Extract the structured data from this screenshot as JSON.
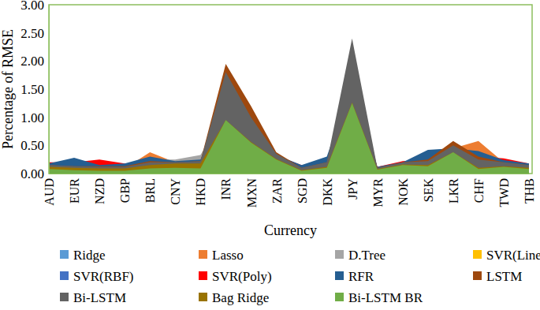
{
  "chart_data": {
    "type": "area",
    "x_label": "Currency",
    "y_label": "Percentage of RMSE",
    "categories": [
      "AUD",
      "EUR",
      "NZD",
      "GBP",
      "BRL",
      "CNY",
      "HKD",
      "INR",
      "MXN",
      "ZAR",
      "SGD",
      "DKK",
      "JPY",
      "MYR",
      "NOK",
      "SEK",
      "LKR",
      "CHF",
      "TWD",
      "THB"
    ],
    "ylim": [
      0,
      3
    ],
    "yticks": [
      {
        "value": 0,
        "label": "0.00"
      },
      {
        "value": 0.5,
        "label": "0.50"
      },
      {
        "value": 1,
        "label": "1.00"
      },
      {
        "value": 1.5,
        "label": "1.50"
      },
      {
        "value": 2,
        "label": "2.00"
      },
      {
        "value": 2.5,
        "label": "2.50"
      },
      {
        "value": 3,
        "label": "3.00"
      }
    ],
    "legend": "bottom",
    "series": [
      {
        "name": "Ridge",
        "color": "#5b9bd5",
        "values": [
          0.1,
          0.08,
          0.08,
          0.07,
          0.12,
          0.12,
          0.12,
          1.0,
          0.6,
          0.28,
          0.06,
          0.12,
          1.3,
          0.08,
          0.16,
          0.15,
          0.4,
          0.1,
          0.14,
          0.1
        ]
      },
      {
        "name": "Lasso",
        "color": "#ed7d31",
        "values": [
          0.12,
          0.1,
          0.1,
          0.09,
          0.38,
          0.2,
          0.15,
          1.05,
          0.65,
          0.3,
          0.08,
          0.15,
          1.35,
          0.1,
          0.2,
          0.2,
          0.45,
          0.58,
          0.2,
          0.14
        ]
      },
      {
        "name": "D.Tree",
        "color": "#a5a5a5",
        "values": [
          0.15,
          0.15,
          0.14,
          0.15,
          0.25,
          0.25,
          0.33,
          1.1,
          0.7,
          0.3,
          0.1,
          0.2,
          1.4,
          0.1,
          0.2,
          0.25,
          0.45,
          0.3,
          0.2,
          0.15
        ]
      },
      {
        "name": "SVR(Linear)",
        "color": "#ffc000",
        "values": [
          0.1,
          0.08,
          0.08,
          0.07,
          0.12,
          0.13,
          0.12,
          1.0,
          0.6,
          0.28,
          0.06,
          0.12,
          1.3,
          0.08,
          0.16,
          0.15,
          0.4,
          0.1,
          0.14,
          0.1
        ]
      },
      {
        "name": "SVR(RBF)",
        "color": "#4472c4",
        "values": [
          0.12,
          0.1,
          0.1,
          0.1,
          0.15,
          0.15,
          0.15,
          1.1,
          0.7,
          0.3,
          0.08,
          0.15,
          1.4,
          0.1,
          0.18,
          0.2,
          0.42,
          0.15,
          0.16,
          0.12
        ]
      },
      {
        "name": "SVR(Poly)",
        "color": "#ff0000",
        "values": [
          0.2,
          0.2,
          0.25,
          0.18,
          0.2,
          0.2,
          0.2,
          1.2,
          0.8,
          0.32,
          0.15,
          0.2,
          1.5,
          0.12,
          0.22,
          0.25,
          0.45,
          0.3,
          0.27,
          0.18
        ]
      },
      {
        "name": "RFR",
        "color": "#255e91",
        "values": [
          0.18,
          0.28,
          0.15,
          0.18,
          0.3,
          0.22,
          0.25,
          1.3,
          0.85,
          0.33,
          0.15,
          0.3,
          1.6,
          0.12,
          0.2,
          0.42,
          0.45,
          0.4,
          0.24,
          0.18
        ]
      },
      {
        "name": "LSTM",
        "color": "#9e480e",
        "values": [
          0.15,
          0.13,
          0.13,
          0.13,
          0.22,
          0.2,
          0.22,
          1.95,
          1.2,
          0.38,
          0.1,
          0.2,
          2.0,
          0.1,
          0.2,
          0.25,
          0.58,
          0.3,
          0.2,
          0.15
        ]
      },
      {
        "name": "Bi-LSTM",
        "color": "#636363",
        "values": [
          0.15,
          0.13,
          0.12,
          0.12,
          0.2,
          0.2,
          0.22,
          1.8,
          1.0,
          0.35,
          0.1,
          0.2,
          2.4,
          0.1,
          0.2,
          0.22,
          0.5,
          0.25,
          0.2,
          0.15
        ]
      },
      {
        "name": "Bag Ridge",
        "color": "#997300",
        "values": [
          0.12,
          0.1,
          0.09,
          0.09,
          0.15,
          0.18,
          0.18,
          0.95,
          0.56,
          0.26,
          0.06,
          0.12,
          1.26,
          0.08,
          0.16,
          0.15,
          0.38,
          0.1,
          0.13,
          0.1
        ]
      },
      {
        "name": "Bi-LSTM BR",
        "color": "#70ad47",
        "values": [
          0.08,
          0.06,
          0.05,
          0.05,
          0.09,
          0.1,
          0.09,
          0.95,
          0.55,
          0.25,
          0.05,
          0.1,
          1.25,
          0.07,
          0.15,
          0.13,
          0.38,
          0.08,
          0.12,
          0.08
        ]
      }
    ]
  }
}
